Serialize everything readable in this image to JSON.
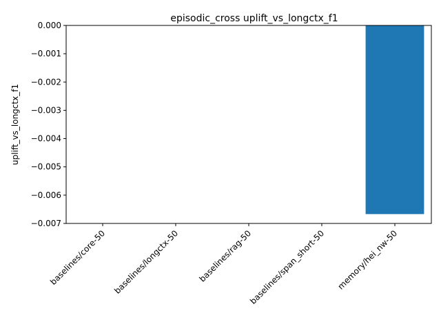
{
  "chart_data": {
    "type": "bar",
    "title": "episodic_cross uplift_vs_longctx_f1",
    "xlabel": "",
    "ylabel": "uplift_vs_longctx_f1",
    "categories": [
      "baselines/core-50",
      "baselines/longctx-50",
      "baselines/rag-50",
      "baselines/span_short-50",
      "memory/hei_nw-50"
    ],
    "values": [
      0.0,
      0.0,
      0.0,
      0.0,
      -0.00667
    ],
    "ylim": [
      -0.007,
      0.0
    ],
    "yticks": [
      0.0,
      -0.001,
      -0.002,
      -0.003,
      -0.004,
      -0.005,
      -0.006,
      -0.007
    ],
    "ytick_labels": [
      "0.000",
      "−0.001",
      "−0.002",
      "−0.003",
      "−0.004",
      "−0.005",
      "−0.006",
      "−0.007"
    ],
    "bar_color": "#1f77b4",
    "grid": false,
    "legend": "none"
  }
}
